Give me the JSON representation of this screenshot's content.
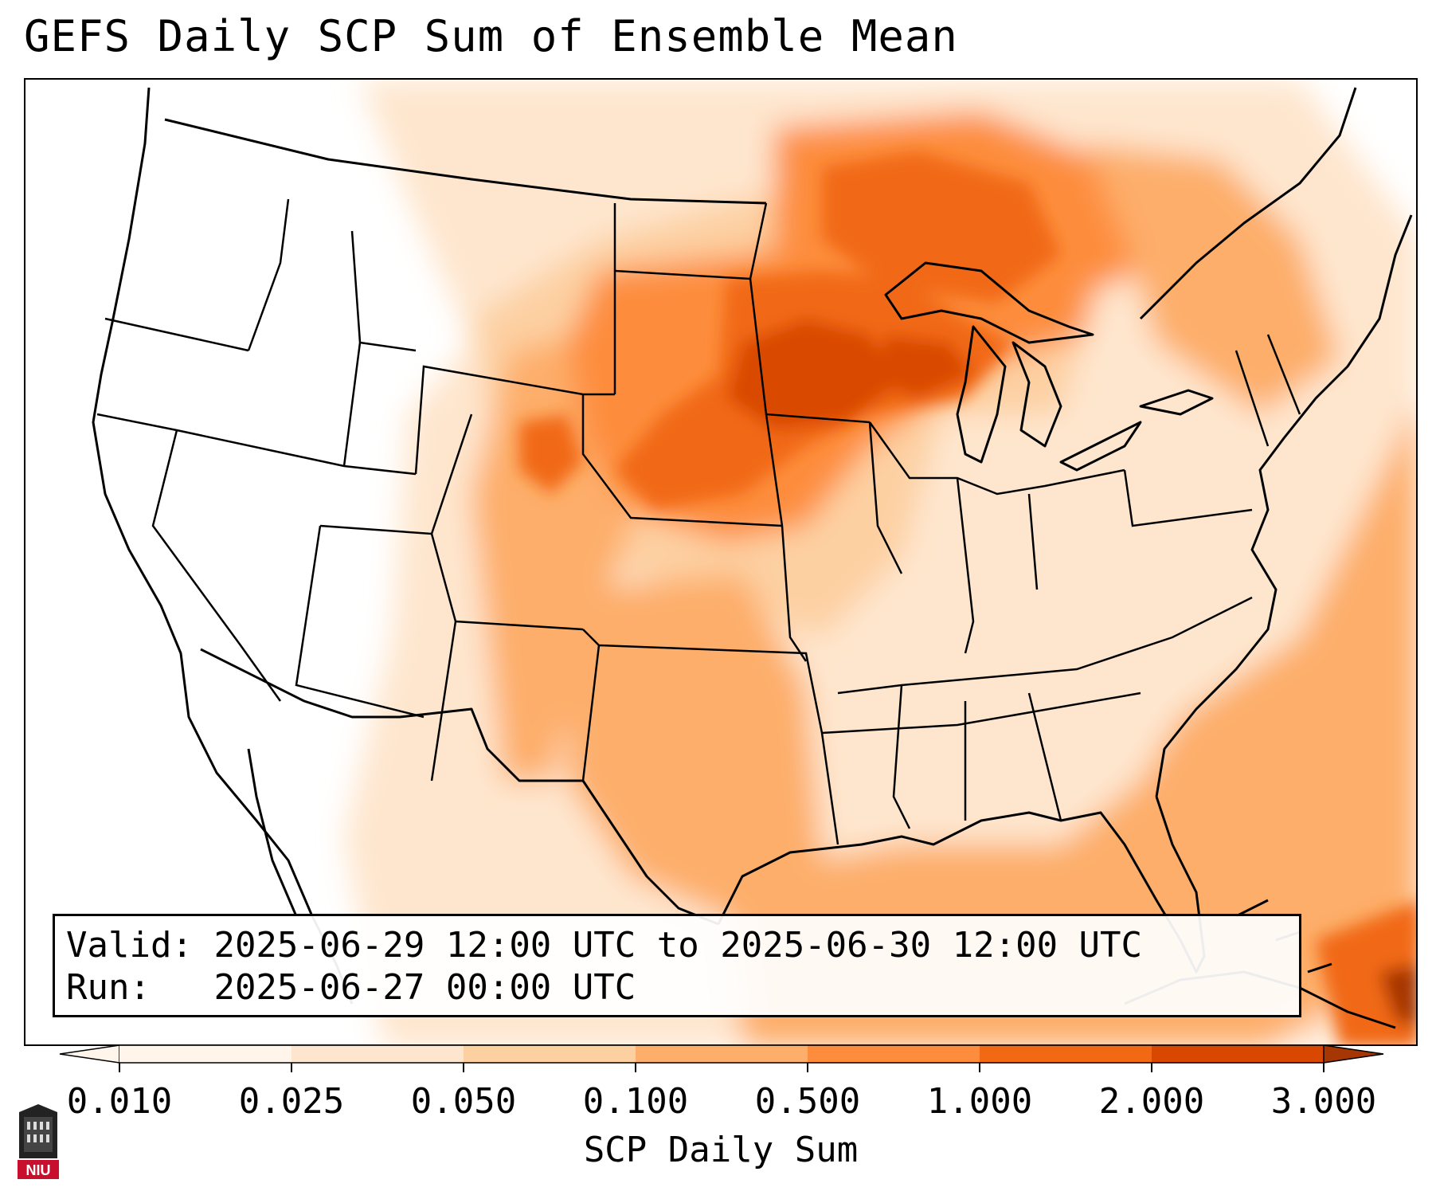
{
  "title": "GEFS Daily SCP Sum of Ensemble Mean",
  "info": {
    "valid_label": "Valid:",
    "valid_value": "2025-06-29 12:00 UTC to 2025-06-30 12:00 UTC",
    "run_label": "Run:",
    "run_value": "2025-06-27 00:00 UTC"
  },
  "colorbar": {
    "label": "SCP Daily Sum",
    "ticks": [
      "0.010",
      "0.025",
      "0.050",
      "0.100",
      "0.500",
      "1.000",
      "2.000",
      "3.000"
    ],
    "colors": [
      "#fff5eb",
      "#fee6ce",
      "#fdd0a2",
      "#fdae6b",
      "#fd8d3c",
      "#f16913",
      "#d94801",
      "#a63603"
    ],
    "extend": "both"
  },
  "logo_text": "NIU",
  "map": {
    "projection": "Lambert conformal CONUS",
    "field": "SCP daily sum",
    "maxima_regions": [
      "eastern South Dakota",
      "southern Minnesota",
      "Wisconsin",
      "northern Michigan / Lake Superior",
      "Nebraska",
      "Cuba / Haiti area"
    ]
  }
}
